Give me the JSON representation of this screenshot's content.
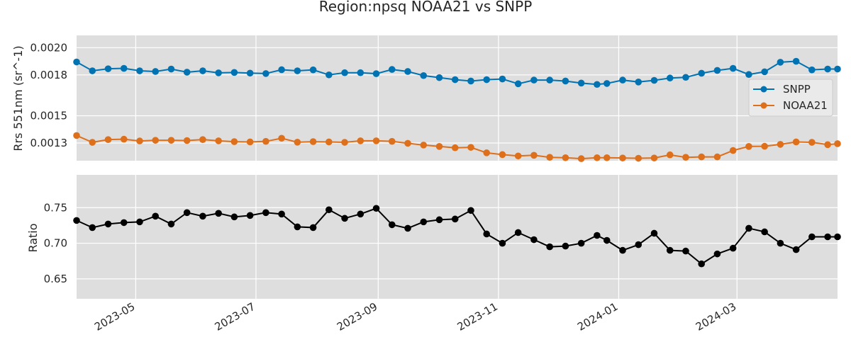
{
  "chart_data": {
    "title": "Region:npsq NOAA21 vs SNPP",
    "type": "line",
    "x_tick_labels": [
      "2023-05",
      "2023-07",
      "2023-09",
      "2023-11",
      "2024-01",
      "2024-03"
    ],
    "x_tick_dates": [
      "2023-05-01",
      "2023-07-01",
      "2023-09-01",
      "2023-11-01",
      "2024-01-01",
      "2024-03-01"
    ],
    "x_range": [
      "2023-04-01",
      "2024-04-21"
    ],
    "dates": [
      "2023-04-01",
      "2023-04-09",
      "2023-04-17",
      "2023-04-25",
      "2023-05-03",
      "2023-05-11",
      "2023-05-19",
      "2023-05-27",
      "2023-06-04",
      "2023-06-12",
      "2023-06-20",
      "2023-06-28",
      "2023-07-06",
      "2023-07-14",
      "2023-07-22",
      "2023-07-30",
      "2023-08-07",
      "2023-08-15",
      "2023-08-23",
      "2023-08-31",
      "2023-09-08",
      "2023-09-16",
      "2023-09-24",
      "2023-10-02",
      "2023-10-10",
      "2023-10-18",
      "2023-10-26",
      "2023-11-03",
      "2023-11-11",
      "2023-11-19",
      "2023-11-27",
      "2023-12-05",
      "2023-12-13",
      "2023-12-21",
      "2023-12-26",
      "2024-01-03",
      "2024-01-11",
      "2024-01-19",
      "2024-01-27",
      "2024-02-04",
      "2024-02-12",
      "2024-02-20",
      "2024-02-28",
      "2024-03-07",
      "2024-03-15",
      "2024-03-23",
      "2024-03-31",
      "2024-04-08",
      "2024-04-16",
      "2024-04-21"
    ],
    "panels": [
      {
        "ylabel": "Rrs 551nm (sr^-1)",
        "ylim": [
          0.00117,
          0.00209
        ],
        "yticks": [
          0.0013,
          0.0015,
          0.0018,
          0.002
        ],
        "ytick_labels": [
          "0.0013",
          "0.0015",
          "0.0018",
          "0.0020"
        ],
        "legend_position": "center-right",
        "series": [
          {
            "name": "SNPP",
            "color": "#0173b2",
            "values": [
              0.001895,
              0.00183,
              0.001845,
              0.001848,
              0.00183,
              0.001825,
              0.001843,
              0.00182,
              0.00183,
              0.001815,
              0.001818,
              0.001813,
              0.00181,
              0.001838,
              0.00183,
              0.001837,
              0.0018,
              0.001816,
              0.001816,
              0.001809,
              0.00184,
              0.001825,
              0.001795,
              0.00178,
              0.001765,
              0.001755,
              0.001765,
              0.00177,
              0.001735,
              0.001762,
              0.001762,
              0.001755,
              0.00174,
              0.00173,
              0.001737,
              0.001762,
              0.001748,
              0.00176,
              0.001777,
              0.001782,
              0.001812,
              0.001833,
              0.001848,
              0.001803,
              0.001823,
              0.001893,
              0.0019,
              0.001837,
              0.001843,
              0.001843
            ]
          },
          {
            "name": "NOAA21",
            "color": "#de6f1b",
            "values": [
              0.001355,
              0.001305,
              0.001325,
              0.001328,
              0.001315,
              0.00132,
              0.00132,
              0.001318,
              0.001325,
              0.001316,
              0.00131,
              0.001308,
              0.001312,
              0.001335,
              0.001306,
              0.00131,
              0.001308,
              0.001305,
              0.001316,
              0.001316,
              0.001312,
              0.001298,
              0.001285,
              0.001275,
              0.001265,
              0.001268,
              0.001228,
              0.001215,
              0.001205,
              0.00121,
              0.001195,
              0.001192,
              0.001185,
              0.001192,
              0.001192,
              0.00119,
              0.001188,
              0.00119,
              0.001213,
              0.001195,
              0.001198,
              0.001198,
              0.001245,
              0.001275,
              0.001276,
              0.00129,
              0.001308,
              0.001305,
              0.001288,
              0.001295
            ]
          }
        ]
      },
      {
        "ylabel": "Ratio",
        "ylim": [
          0.622,
          0.796
        ],
        "yticks": [
          0.65,
          0.7,
          0.75
        ],
        "ytick_labels": [
          "0.65",
          "0.70",
          "0.75"
        ],
        "series": [
          {
            "name": "",
            "color": "#000000",
            "values": [
              0.732,
              0.722,
              0.727,
              0.729,
              0.73,
              0.738,
              0.727,
              0.743,
              0.738,
              0.742,
              0.737,
              0.739,
              0.743,
              0.741,
              0.723,
              0.722,
              0.747,
              0.735,
              0.741,
              0.749,
              0.726,
              0.721,
              0.73,
              0.733,
              0.734,
              0.746,
              0.713,
              0.7,
              0.715,
              0.705,
              0.695,
              0.696,
              0.7,
              0.711,
              0.704,
              0.69,
              0.698,
              0.714,
              0.69,
              0.689,
              0.671,
              0.685,
              0.693,
              0.721,
              0.716,
              0.7,
              0.691,
              0.709,
              0.709,
              0.709
            ]
          }
        ]
      }
    ]
  }
}
